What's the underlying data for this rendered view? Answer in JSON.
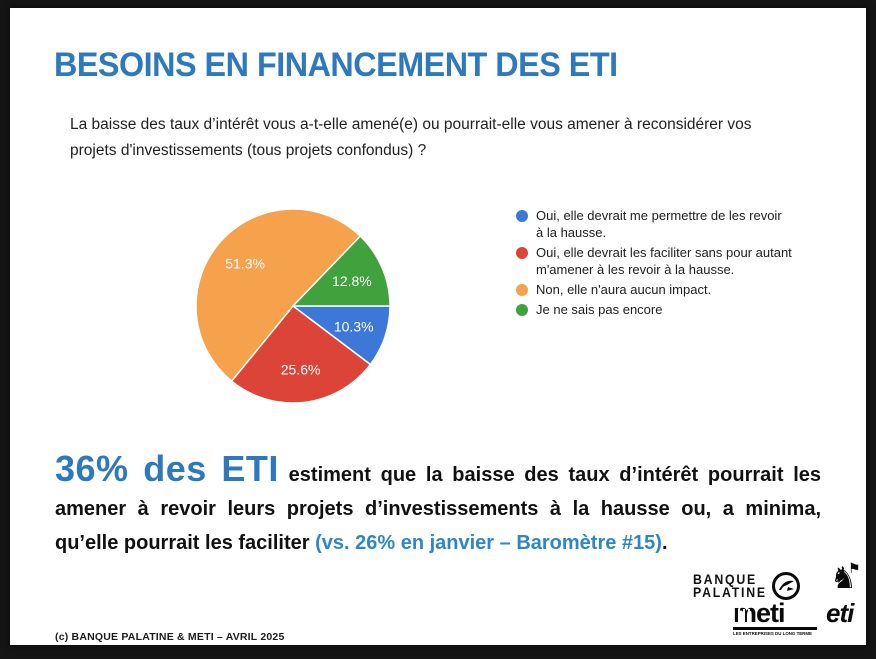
{
  "slide": {
    "title": "BESOINS EN FINANCEMENT DES ETI",
    "question": "La baisse des taux d’intérêt vous a-t-elle amené(e) ou pourrait-elle vous amener à reconsidérer vos projets d'investissements (tous projets confondus) ?",
    "footer": "(c) BANQUE PALATINE & METI – AVRIL 2025",
    "accent_blue": "#2E78BE"
  },
  "chart_data": {
    "type": "pie",
    "title": "",
    "labels": [
      "Oui, elle devrait me permettre de les revoir à la hausse.",
      "Oui, elle devrait les faciliter sans pour autant m'amener à les revoir à la hausse.",
      "Non, elle n'aura aucun impact.",
      "Je ne sais pas encore"
    ],
    "values": [
      10.3,
      25.6,
      51.3,
      12.8
    ],
    "display_labels": [
      "10.3%",
      "25.6%",
      "51.3%",
      "12.8%"
    ],
    "colors": [
      "#3C78D8",
      "#DB4437",
      "#F6A14C",
      "#3FA23D"
    ],
    "legend_position": "right",
    "start_angle": 0,
    "direction": "clockwise",
    "label_color": "#ffffff"
  },
  "statement": {
    "highlight": "36% des ETI",
    "line1_rest": "estiment que la baisse des taux d’intérêt pourrait les",
    "line2": "amener à revoir leurs projets d’investissements à la hausse ou, a minima,",
    "line3_black": "qu’elle pourrait les faciliter",
    "line3_blue": "(vs. 26% en janvier – Baromètre #15)",
    "line3_period": "."
  },
  "logos": {
    "bank_line1": "BANQUE",
    "bank_line2": "PALATINE",
    "meti": "meti",
    "meti_tagline": "LES ENTREPRISES DU LONG TERME",
    "eti": "eti"
  }
}
